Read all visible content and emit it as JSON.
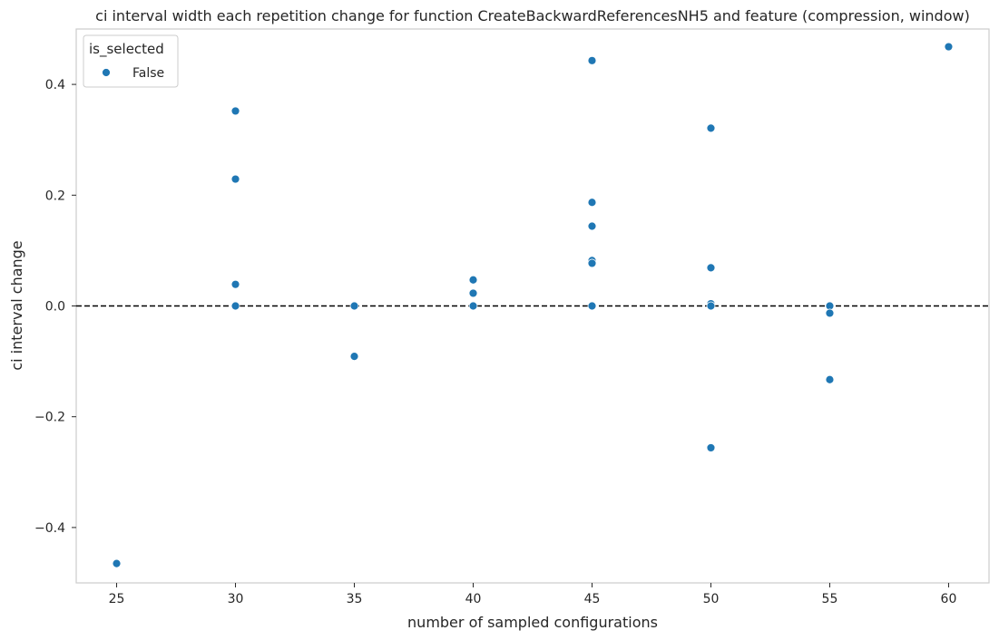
{
  "chart_data": {
    "type": "scatter",
    "title": "ci interval width each repetition change for function CreateBackwardReferencesNH5 and feature (compression, window)",
    "xlabel": "number of sampled configurations",
    "ylabel": "ci interval change",
    "xlim": [
      23.3,
      61.7
    ],
    "ylim": [
      -0.5,
      0.5
    ],
    "x_ticks": [
      25,
      30,
      35,
      40,
      45,
      50,
      55,
      60
    ],
    "y_ticks": [
      -0.4,
      -0.2,
      0.0,
      0.2,
      0.4
    ],
    "y_tick_labels": [
      "−0.4",
      "−0.2",
      "0.0",
      "0.2",
      "0.4"
    ],
    "grid": false,
    "reference_line": {
      "y": 0.0,
      "style": "dashed",
      "color": "#000000"
    },
    "legend": {
      "title": "is_selected",
      "position": "top-left"
    },
    "series": [
      {
        "name": "False",
        "color": "#1f77b4",
        "points": [
          [
            25,
            -0.465
          ],
          [
            30,
            0.352
          ],
          [
            30,
            0.229
          ],
          [
            30,
            0.039
          ],
          [
            30,
            0.0
          ],
          [
            35,
            0.0
          ],
          [
            35,
            -0.091
          ],
          [
            40,
            0.047
          ],
          [
            40,
            0.023
          ],
          [
            40,
            0.0
          ],
          [
            45,
            0.443
          ],
          [
            45,
            0.187
          ],
          [
            45,
            0.144
          ],
          [
            45,
            0.082
          ],
          [
            45,
            0.077
          ],
          [
            45,
            0.0
          ],
          [
            50,
            0.321
          ],
          [
            50,
            0.069
          ],
          [
            50,
            0.004
          ],
          [
            50,
            0.0
          ],
          [
            50,
            -0.256
          ],
          [
            55,
            0.0
          ],
          [
            55,
            -0.013
          ],
          [
            55,
            -0.133
          ],
          [
            60,
            0.468
          ]
        ]
      }
    ]
  }
}
